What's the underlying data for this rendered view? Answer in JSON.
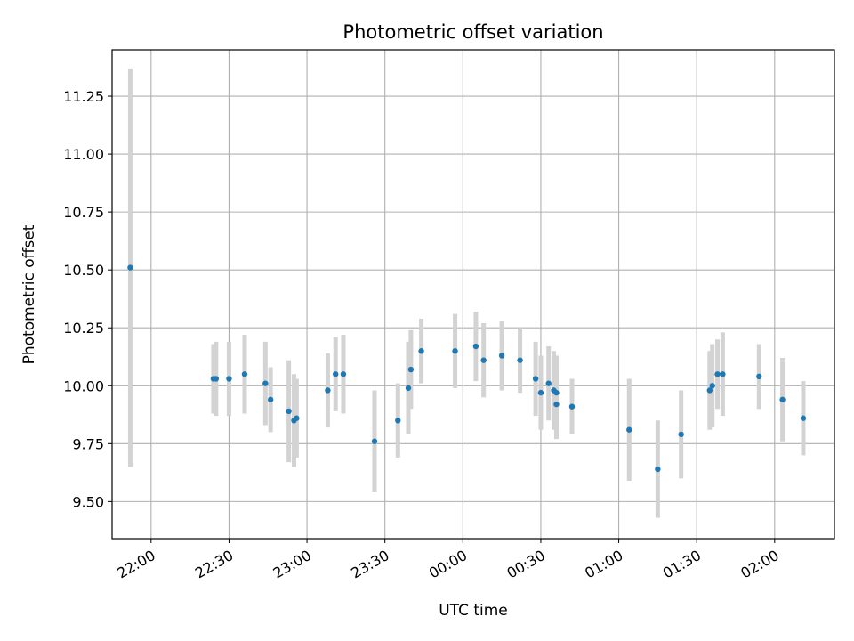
{
  "chart_data": {
    "type": "scatter",
    "title": "Photometric offset variation",
    "xlabel": "UTC time",
    "ylabel": "Photometric offset",
    "grid": true,
    "colors": {
      "point": "#1f77b4",
      "errorbar": "#d3d3d3",
      "grid": "#b0b0b0"
    },
    "xlim": [
      "21:45",
      "02:23"
    ],
    "ylim": [
      9.34,
      11.45
    ],
    "x_ticks": [
      "22:00",
      "22:30",
      "23:00",
      "23:30",
      "00:00",
      "00:30",
      "01:00",
      "01:30",
      "02:00"
    ],
    "y_ticks": [
      "9.50",
      "9.75",
      "10.00",
      "10.25",
      "10.50",
      "10.75",
      "11.00",
      "11.25"
    ],
    "points": [
      {
        "x": "21:52",
        "y": 10.51,
        "err": 0.86
      },
      {
        "x": "22:24",
        "y": 10.03,
        "err": 0.15
      },
      {
        "x": "22:25",
        "y": 10.03,
        "err": 0.16
      },
      {
        "x": "22:30",
        "y": 10.03,
        "err": 0.16
      },
      {
        "x": "22:36",
        "y": 10.05,
        "err": 0.17
      },
      {
        "x": "22:44",
        "y": 10.01,
        "err": 0.18
      },
      {
        "x": "22:46",
        "y": 9.94,
        "err": 0.14
      },
      {
        "x": "22:53",
        "y": 9.89,
        "err": 0.22
      },
      {
        "x": "22:55",
        "y": 9.85,
        "err": 0.2
      },
      {
        "x": "22:56",
        "y": 9.86,
        "err": 0.17
      },
      {
        "x": "23:08",
        "y": 9.98,
        "err": 0.16
      },
      {
        "x": "23:11",
        "y": 10.05,
        "err": 0.16
      },
      {
        "x": "23:14",
        "y": 10.05,
        "err": 0.17
      },
      {
        "x": "23:26",
        "y": 9.76,
        "err": 0.22
      },
      {
        "x": "23:35",
        "y": 9.85,
        "err": 0.16
      },
      {
        "x": "23:39",
        "y": 9.99,
        "err": 0.2
      },
      {
        "x": "23:40",
        "y": 10.07,
        "err": 0.17
      },
      {
        "x": "23:44",
        "y": 10.15,
        "err": 0.14
      },
      {
        "x": "23:57",
        "y": 10.15,
        "err": 0.16
      },
      {
        "x": "00:05",
        "y": 10.17,
        "err": 0.15
      },
      {
        "x": "00:08",
        "y": 10.11,
        "err": 0.16
      },
      {
        "x": "00:15",
        "y": 10.13,
        "err": 0.15
      },
      {
        "x": "00:22",
        "y": 10.11,
        "err": 0.14
      },
      {
        "x": "00:28",
        "y": 10.03,
        "err": 0.16
      },
      {
        "x": "00:30",
        "y": 9.97,
        "err": 0.16
      },
      {
        "x": "00:33",
        "y": 10.01,
        "err": 0.16
      },
      {
        "x": "00:35",
        "y": 9.98,
        "err": 0.17
      },
      {
        "x": "00:36",
        "y": 9.97,
        "err": 0.16
      },
      {
        "x": "00:36",
        "y": 9.92,
        "err": 0.15
      },
      {
        "x": "00:42",
        "y": 9.91,
        "err": 0.12
      },
      {
        "x": "01:04",
        "y": 9.81,
        "err": 0.22
      },
      {
        "x": "01:15",
        "y": 9.64,
        "err": 0.21
      },
      {
        "x": "01:24",
        "y": 9.79,
        "err": 0.19
      },
      {
        "x": "01:35",
        "y": 9.98,
        "err": 0.17
      },
      {
        "x": "01:36",
        "y": 10.0,
        "err": 0.18
      },
      {
        "x": "01:38",
        "y": 10.05,
        "err": 0.15
      },
      {
        "x": "01:40",
        "y": 10.05,
        "err": 0.18
      },
      {
        "x": "01:54",
        "y": 10.04,
        "err": 0.14
      },
      {
        "x": "02:03",
        "y": 9.94,
        "err": 0.18
      },
      {
        "x": "02:11",
        "y": 9.86,
        "err": 0.16
      }
    ]
  }
}
